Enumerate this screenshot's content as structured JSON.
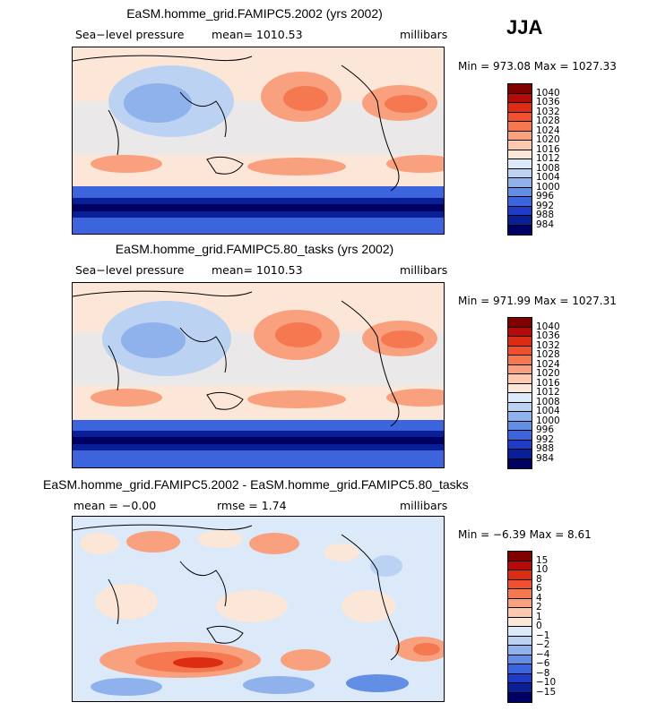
{
  "season": "JJA",
  "panels": [
    {
      "title": "EaSM.homme_grid.FAMIPC5.2002 (yrs 2002)",
      "left_label": "Sea−level pressure",
      "center_label": "mean= 1010.53",
      "right_label": "millibars",
      "minmax": "Min = 973.08 Max = 1027.33",
      "legend_labels": [
        "1040",
        "1036",
        "1032",
        "1028",
        "1024",
        "1020",
        "1016",
        "1012",
        "1008",
        "1004",
        "1000",
        "996",
        "992",
        "988",
        "984"
      ]
    },
    {
      "title": "EaSM.homme_grid.FAMIPC5.80_tasks (yrs 2002)",
      "left_label": "Sea−level pressure",
      "center_label": "mean= 1010.53",
      "right_label": "millibars",
      "minmax": "Min = 971.99 Max = 1027.31",
      "legend_labels": [
        "1040",
        "1036",
        "1032",
        "1028",
        "1024",
        "1020",
        "1016",
        "1012",
        "1008",
        "1004",
        "1000",
        "996",
        "992",
        "988",
        "984"
      ]
    },
    {
      "title": "EaSM.homme_grid.FAMIPC5.2002 - EaSM.homme_grid.FAMIPC5.80_tasks",
      "left_label": "mean =   −0.00",
      "center_label": "rmse =    1.74",
      "right_label": "millibars",
      "minmax": "Min =   −6.39 Max =    8.61",
      "legend_labels": [
        "15",
        "10",
        "8",
        "6",
        "4",
        "2",
        "1",
        "0",
        "−1",
        "−2",
        "−4",
        "−6",
        "−8",
        "−10",
        "−15"
      ]
    }
  ],
  "colors": {
    "scale": [
      "#800000",
      "#b40a0a",
      "#dc2d14",
      "#f0502d",
      "#f57850",
      "#f9a07e",
      "#fcc8ae",
      "#fce6d8",
      "#dce9f8",
      "#bcd2f2",
      "#8fb1ec",
      "#628ee6",
      "#3c64dc",
      "#1e3cc8",
      "#0a1e96",
      "#000064"
    ],
    "coast": "#000000"
  }
}
